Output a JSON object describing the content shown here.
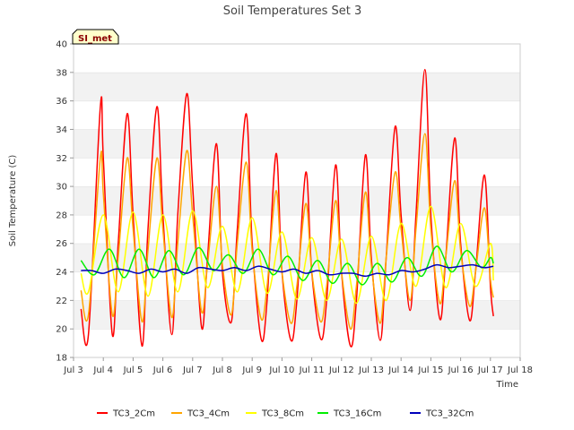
{
  "chart_data": {
    "type": "line",
    "title": "Soil Temperatures Set 3",
    "xlabel": "Time",
    "ylabel": "Soil Temperature (C)",
    "badge": "SI_met",
    "xlim": [
      3,
      18
    ],
    "ylim": [
      18,
      40
    ],
    "x_ticks": [
      {
        "value": 3,
        "label": "Jul 3"
      },
      {
        "value": 4,
        "label": "Jul 4"
      },
      {
        "value": 5,
        "label": "Jul 5"
      },
      {
        "value": 6,
        "label": "Jul 6"
      },
      {
        "value": 7,
        "label": "Jul 7"
      },
      {
        "value": 8,
        "label": "Jul 8"
      },
      {
        "value": 9,
        "label": "Jul 9"
      },
      {
        "value": 10,
        "label": "Jul 10"
      },
      {
        "value": 11,
        "label": "Jul 11"
      },
      {
        "value": 12,
        "label": "Jul 12"
      },
      {
        "value": 13,
        "label": "Jul 13"
      },
      {
        "value": 14,
        "label": "Jul 14"
      },
      {
        "value": 15,
        "label": "Jul 15"
      },
      {
        "value": 16,
        "label": "Jul 16"
      },
      {
        "value": 17,
        "label": "Jul 17"
      },
      {
        "value": 18,
        "label": "Jul 18"
      }
    ],
    "y_ticks": [
      18,
      20,
      22,
      24,
      26,
      28,
      30,
      32,
      34,
      36,
      38,
      40
    ],
    "grid": "horizontal bands",
    "legend_position": "bottom",
    "series": [
      {
        "name": "TC3_2Cm",
        "color": "#ff0000",
        "x": [
          3.25,
          3.5,
          3.9,
          4.0,
          4.3,
          4.5,
          4.8,
          5.0,
          5.3,
          5.5,
          5.8,
          6.0,
          6.3,
          6.5,
          6.8,
          7.0,
          7.3,
          7.5,
          7.8,
          8.0,
          8.3,
          8.5,
          8.8,
          9.0,
          9.3,
          9.5,
          9.8,
          10.0,
          10.3,
          10.5,
          10.8,
          11.0,
          11.3,
          11.5,
          11.8,
          12.0,
          12.3,
          12.5,
          12.8,
          13.0,
          13.3,
          13.5,
          13.8,
          14.0,
          14.3,
          14.5,
          14.8,
          15.0,
          15.3,
          15.5,
          15.8,
          16.0,
          16.3,
          16.5,
          16.8,
          17.0,
          17.1
        ],
        "y": [
          21.4,
          19.6,
          35.6,
          32.0,
          19.6,
          26.0,
          35.1,
          28.0,
          18.8,
          27.0,
          35.6,
          28.0,
          19.6,
          28.0,
          36.5,
          30.0,
          20.1,
          25.0,
          33.0,
          24.0,
          20.5,
          27.0,
          35.1,
          26.0,
          19.3,
          22.0,
          32.3,
          24.0,
          19.2,
          22.0,
          31.0,
          24.0,
          19.3,
          22.0,
          31.5,
          24.0,
          18.8,
          22.0,
          32.2,
          25.0,
          19.2,
          25.0,
          34.2,
          28.0,
          21.3,
          28.0,
          38.2,
          28.0,
          20.7,
          25.0,
          33.4,
          26.0,
          20.6,
          24.0,
          30.8,
          23.0,
          20.9
        ]
      },
      {
        "name": "TC3_4Cm",
        "color": "#ffa500",
        "x": [
          3.25,
          3.5,
          3.9,
          4.0,
          4.3,
          4.5,
          4.8,
          5.0,
          5.3,
          5.5,
          5.8,
          6.0,
          6.3,
          6.5,
          6.8,
          7.0,
          7.3,
          7.5,
          7.8,
          8.0,
          8.3,
          8.5,
          8.8,
          9.0,
          9.3,
          9.5,
          9.8,
          10.0,
          10.3,
          10.5,
          10.8,
          11.0,
          11.3,
          11.5,
          11.8,
          12.0,
          12.3,
          12.5,
          12.8,
          13.0,
          13.3,
          13.5,
          13.8,
          14.0,
          14.3,
          14.5,
          14.8,
          15.0,
          15.3,
          15.5,
          15.8,
          16.0,
          16.3,
          16.5,
          16.8,
          17.0,
          17.1
        ],
        "y": [
          22.7,
          21.0,
          32.0,
          29.5,
          21.0,
          25.0,
          32.0,
          27.0,
          20.5,
          25.5,
          32.0,
          27.0,
          20.8,
          26.0,
          32.5,
          28.0,
          21.2,
          24.5,
          30.0,
          24.5,
          21.0,
          26.0,
          31.7,
          25.5,
          20.7,
          23.0,
          29.7,
          24.0,
          20.4,
          23.0,
          28.8,
          24.0,
          20.5,
          23.0,
          29.0,
          24.0,
          20.0,
          23.0,
          29.6,
          24.5,
          20.4,
          25.0,
          31.0,
          27.0,
          22.0,
          27.0,
          33.7,
          27.0,
          21.8,
          25.0,
          30.4,
          25.5,
          21.6,
          24.0,
          28.5,
          23.5,
          22.2
        ]
      },
      {
        "name": "TC3_8Cm",
        "color": "#ffff00",
        "x": [
          3.25,
          3.5,
          4.0,
          4.5,
          5.0,
          5.5,
          6.0,
          6.5,
          7.0,
          7.5,
          8.0,
          8.5,
          9.0,
          9.5,
          10.0,
          10.5,
          11.0,
          11.5,
          12.0,
          12.5,
          13.0,
          13.5,
          14.0,
          14.5,
          15.0,
          15.5,
          16.0,
          16.5,
          17.0,
          17.1
        ],
        "y": [
          23.9,
          22.6,
          28.0,
          22.6,
          28.2,
          22.3,
          28.0,
          22.6,
          28.3,
          22.9,
          27.2,
          22.6,
          27.8,
          22.5,
          26.8,
          22.1,
          26.4,
          22.0,
          26.3,
          21.8,
          26.5,
          22.0,
          27.4,
          23.0,
          28.6,
          22.9,
          27.4,
          23.0,
          26.0,
          23.4
        ]
      },
      {
        "name": "TC3_16Cm",
        "color": "#00ee00",
        "x": [
          3.25,
          3.7,
          4.2,
          4.7,
          5.2,
          5.7,
          6.2,
          6.7,
          7.2,
          7.7,
          8.2,
          8.7,
          9.2,
          9.7,
          10.2,
          10.7,
          11.2,
          11.7,
          12.2,
          12.7,
          13.2,
          13.7,
          14.2,
          14.7,
          15.2,
          15.7,
          16.2,
          16.7,
          17.0,
          17.1
        ],
        "y": [
          24.8,
          23.8,
          25.6,
          23.6,
          25.6,
          23.6,
          25.5,
          23.8,
          25.7,
          24.1,
          25.2,
          23.9,
          25.6,
          23.8,
          25.1,
          23.4,
          24.8,
          23.2,
          24.6,
          23.1,
          24.6,
          23.3,
          25.0,
          23.7,
          25.8,
          24.0,
          25.5,
          24.3,
          25.0,
          24.6
        ]
      },
      {
        "name": "TC3_32Cm",
        "color": "#0000bb",
        "x": [
          3.25,
          3.6,
          4.0,
          4.4,
          4.8,
          5.2,
          5.6,
          6.0,
          6.4,
          6.8,
          7.2,
          7.6,
          8.0,
          8.4,
          8.8,
          9.2,
          9.6,
          10.0,
          10.4,
          10.8,
          11.2,
          11.6,
          12.0,
          12.4,
          12.8,
          13.2,
          13.6,
          14.0,
          14.4,
          14.8,
          15.2,
          15.6,
          16.0,
          16.4,
          16.8,
          17.1
        ],
        "y": [
          24.1,
          24.1,
          23.9,
          24.2,
          24.1,
          23.9,
          24.2,
          24.0,
          24.2,
          23.9,
          24.3,
          24.2,
          24.1,
          24.3,
          24.1,
          24.4,
          24.2,
          24.0,
          24.2,
          23.9,
          24.1,
          23.8,
          23.9,
          23.9,
          23.7,
          23.9,
          23.8,
          24.1,
          24.0,
          24.2,
          24.5,
          24.3,
          24.4,
          24.5,
          24.3,
          24.4
        ]
      }
    ]
  }
}
